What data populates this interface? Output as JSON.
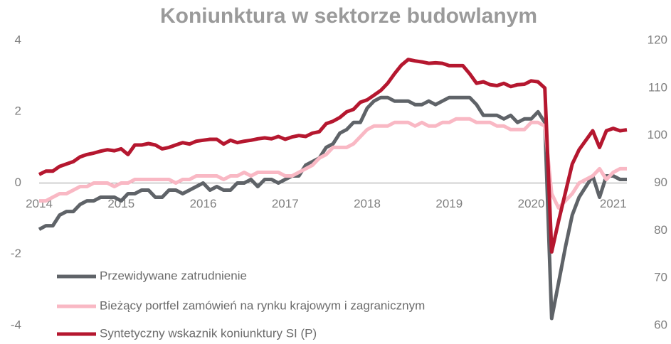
{
  "chart_data": {
    "type": "line",
    "title": "Koniunktura w sektorze budowlanym",
    "categories": [
      "2014",
      null,
      null,
      null,
      null,
      null,
      null,
      null,
      null,
      null,
      null,
      null,
      "2015",
      null,
      null,
      null,
      null,
      null,
      null,
      null,
      null,
      null,
      null,
      null,
      "2016",
      null,
      null,
      null,
      null,
      null,
      null,
      null,
      null,
      null,
      null,
      null,
      "2017",
      null,
      null,
      null,
      null,
      null,
      null,
      null,
      null,
      null,
      null,
      null,
      "2018",
      null,
      null,
      null,
      null,
      null,
      null,
      null,
      null,
      null,
      null,
      null,
      "2019",
      null,
      null,
      null,
      null,
      null,
      null,
      null,
      null,
      null,
      null,
      null,
      "2020",
      null,
      null,
      null,
      null,
      null,
      null,
      null,
      null,
      null,
      null,
      null,
      "2021",
      null,
      null
    ],
    "ylim": [
      -4,
      4
    ],
    "yticks": [
      -4,
      -2,
      0,
      2,
      4
    ],
    "y2lim": [
      60,
      120
    ],
    "y2ticks": [
      60,
      70,
      80,
      90,
      100,
      110,
      120
    ],
    "series": [
      {
        "name": "Przewidywane zatrudnienie",
        "color": "#5f6368",
        "values": [
          -1.3,
          -1.2,
          -1.2,
          -0.9,
          -0.8,
          -0.8,
          -0.6,
          -0.5,
          -0.5,
          -0.4,
          -0.4,
          -0.4,
          -0.5,
          -0.3,
          -0.3,
          -0.2,
          -0.2,
          -0.4,
          -0.4,
          -0.2,
          -0.2,
          -0.3,
          -0.2,
          -0.1,
          0,
          -0.2,
          -0.1,
          -0.2,
          -0.2,
          0,
          0,
          0.1,
          -0.1,
          0.1,
          0.1,
          0,
          0.1,
          0.2,
          0.2,
          0.5,
          0.6,
          0.7,
          1.0,
          1.1,
          1.4,
          1.5,
          1.7,
          1.7,
          2.1,
          2.3,
          2.4,
          2.4,
          2.3,
          2.3,
          2.3,
          2.2,
          2.2,
          2.3,
          2.2,
          2.3,
          2.4,
          2.4,
          2.4,
          2.4,
          2.2,
          1.9,
          1.9,
          1.9,
          1.8,
          1.9,
          1.7,
          1.8,
          1.8,
          2.0,
          1.7,
          -3.8,
          -2.8,
          -1.8,
          -0.9,
          -0.4,
          -0.1,
          0.2,
          -0.4,
          0.2,
          0.2,
          0.1,
          0.1
        ]
      },
      {
        "name": "Bieżący portfel zamówień na rynku krajowym i zagranicznym",
        "color": "#f9b8c4",
        "values": [
          -0.5,
          -0.5,
          -0.4,
          -0.3,
          -0.3,
          -0.2,
          -0.1,
          -0.1,
          0,
          0,
          0,
          -0.1,
          0,
          0,
          0.1,
          0.1,
          0.1,
          0.1,
          0.1,
          0.1,
          0,
          0.1,
          0.1,
          0.2,
          0.2,
          0.2,
          0.2,
          0.1,
          0.2,
          0.2,
          0.3,
          0.2,
          0.3,
          0.3,
          0.3,
          0.3,
          0.2,
          0.2,
          0.3,
          0.4,
          0.5,
          0.7,
          0.8,
          1.0,
          1.0,
          1.0,
          1.1,
          1.3,
          1.5,
          1.6,
          1.6,
          1.6,
          1.7,
          1.7,
          1.7,
          1.6,
          1.7,
          1.6,
          1.6,
          1.7,
          1.7,
          1.8,
          1.8,
          1.8,
          1.7,
          1.7,
          1.7,
          1.6,
          1.6,
          1.5,
          1.5,
          1.5,
          1.7,
          1.7,
          1.6,
          -0.3,
          -0.7,
          -0.5,
          -0.3,
          0,
          0.1,
          0.2,
          0.4,
          0.1,
          0.3,
          0.4,
          0.4
        ]
      },
      {
        "name": "Syntetyczny wskaznik koniunktury SI (P)",
        "color": "#b5172f",
        "axis": "y2",
        "values": [
          91.8,
          92.5,
          92.5,
          93.5,
          94,
          94.5,
          95.5,
          96,
          96.3,
          96.7,
          97,
          96.8,
          97.2,
          96,
          98,
          98,
          98.3,
          98,
          97.2,
          97.5,
          98,
          98.5,
          98.2,
          98.8,
          99,
          99.2,
          99.2,
          98.2,
          99,
          98.5,
          98.8,
          99,
          99.3,
          99.5,
          99.3,
          99.8,
          99.2,
          99.7,
          100,
          99.8,
          100.5,
          100.8,
          102.5,
          103,
          103.8,
          105,
          105.5,
          107,
          107.5,
          108.5,
          109.5,
          111,
          113,
          114.8,
          116,
          115.7,
          115.5,
          115.2,
          115.3,
          115.2,
          114.7,
          114.7,
          114.7,
          113,
          111,
          111.3,
          110.7,
          110.5,
          111,
          110.3,
          110.7,
          110.8,
          111.5,
          111.3,
          110,
          75.5,
          82,
          88,
          94,
          97,
          99,
          101,
          97.5,
          101,
          101.5,
          101,
          101.2
        ]
      }
    ]
  }
}
